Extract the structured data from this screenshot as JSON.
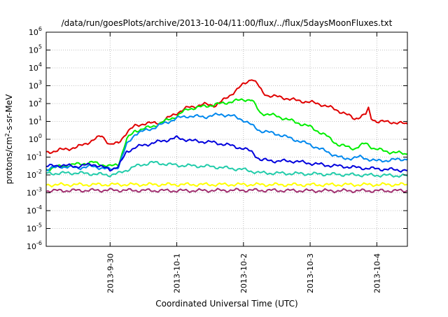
{
  "chart_data": {
    "type": "line",
    "title": "/data/run/goesPlots/archive/2013-10-04/11:00/flux/../flux/5daysMoonFluxes.txt",
    "xlabel": "Coordinated Universal Time (UTC)",
    "ylabel_parts": [
      "protons/cm",
      "2",
      "-s-sr-MeV"
    ],
    "x_is_date": true,
    "x_domain": [
      "2013-09-29 01:00",
      "2013-10-04 11:00"
    ],
    "x_ticks": [
      "2013-9-30",
      "2013-10-1",
      "2013-10-2",
      "2013-10-3",
      "2013-10-4"
    ],
    "y_scale": "log",
    "ylim": [
      1e-06,
      1000000.0
    ],
    "y_ticks": [
      {
        "base": "10",
        "exp": "-6"
      },
      {
        "base": "10",
        "exp": "-5"
      },
      {
        "base": "10",
        "exp": "-4"
      },
      {
        "base": "10",
        "exp": "-3"
      },
      {
        "base": "10",
        "exp": "-2"
      },
      {
        "base": "10",
        "exp": "-1"
      },
      {
        "base": "10",
        "exp": "0"
      },
      {
        "base": "10",
        "exp": "1"
      },
      {
        "base": "10",
        "exp": "2"
      },
      {
        "base": "10",
        "exp": "3"
      },
      {
        "base": "10",
        "exp": "4"
      },
      {
        "base": "10",
        "exp": "5"
      },
      {
        "base": "10",
        "exp": "6"
      }
    ],
    "grid": true,
    "series": [
      {
        "color": "#e00000",
        "points": [
          [
            "2013-09-29 01:00",
            0.18
          ],
          [
            "2013-09-29 06:00",
            0.25
          ],
          [
            "2013-09-29 12:00",
            0.35
          ],
          [
            "2013-09-29 18:00",
            0.9
          ],
          [
            "2013-09-29 21:00",
            1.6
          ],
          [
            "2013-09-30 00:00",
            0.5
          ],
          [
            "2013-09-30 03:00",
            0.6
          ],
          [
            "2013-09-30 06:00",
            2.5
          ],
          [
            "2013-09-30 09:00",
            5.5
          ],
          [
            "2013-09-30 12:00",
            7.5
          ],
          [
            "2013-09-30 18:00",
            8.5
          ],
          [
            "2013-10-01 00:00",
            30
          ],
          [
            "2013-10-01 04:00",
            60
          ],
          [
            "2013-10-01 10:00",
            90
          ],
          [
            "2013-10-01 14:00",
            80
          ],
          [
            "2013-10-01 17:00",
            160
          ],
          [
            "2013-10-01 21:00",
            500
          ],
          [
            "2013-10-02 00:00",
            1200
          ],
          [
            "2013-10-02 03:00",
            2600
          ],
          [
            "2013-10-02 05:00",
            1200
          ],
          [
            "2013-10-02 07:00",
            400
          ],
          [
            "2013-10-02 09:00",
            280
          ],
          [
            "2013-10-02 14:00",
            220
          ],
          [
            "2013-10-02 19:00",
            150
          ],
          [
            "2013-10-03 00:00",
            120
          ],
          [
            "2013-10-03 04:00",
            90
          ],
          [
            "2013-10-03 08:00",
            55
          ],
          [
            "2013-10-03 12:00",
            30
          ],
          [
            "2013-10-03 16:00",
            14
          ],
          [
            "2013-10-03 20:00",
            25
          ],
          [
            "2013-10-03 21:00",
            50
          ],
          [
            "2013-10-03 22:00",
            15
          ],
          [
            "2013-10-04 00:00",
            10
          ],
          [
            "2013-10-04 06:00",
            9
          ],
          [
            "2013-10-04 11:00",
            7
          ]
        ]
      },
      {
        "color": "#00ee00",
        "points": [
          [
            "2013-09-29 01:00",
            0.02
          ],
          [
            "2013-09-29 06:00",
            0.03
          ],
          [
            "2013-09-29 12:00",
            0.04
          ],
          [
            "2013-09-29 18:00",
            0.05
          ],
          [
            "2013-09-30 00:00",
            0.03
          ],
          [
            "2013-09-30 03:00",
            0.04
          ],
          [
            "2013-09-30 06:00",
            1.0
          ],
          [
            "2013-09-30 09:00",
            3.0
          ],
          [
            "2013-09-30 15:00",
            5
          ],
          [
            "2013-10-01 00:00",
            20
          ],
          [
            "2013-10-01 04:00",
            50
          ],
          [
            "2013-10-01 10:00",
            70
          ],
          [
            "2013-10-01 16:00",
            100
          ],
          [
            "2013-10-01 20:00",
            130
          ],
          [
            "2013-10-02 00:00",
            170
          ],
          [
            "2013-10-02 03:00",
            160
          ],
          [
            "2013-10-02 06:00",
            30
          ],
          [
            "2013-10-02 12:00",
            20
          ],
          [
            "2013-10-02 18:00",
            10
          ],
          [
            "2013-10-03 00:00",
            5
          ],
          [
            "2013-10-03 06:00",
            1.5
          ],
          [
            "2013-10-03 10:00",
            0.5
          ],
          [
            "2013-10-03 16:00",
            0.3
          ],
          [
            "2013-10-03 20:00",
            0.6
          ],
          [
            "2013-10-03 23:00",
            0.3
          ],
          [
            "2013-10-04 04:00",
            0.2
          ],
          [
            "2013-10-04 11:00",
            0.15
          ]
        ]
      },
      {
        "color": "#0088ee",
        "points": [
          [
            "2013-09-29 01:00",
            0.02
          ],
          [
            "2013-09-29 06:00",
            0.03
          ],
          [
            "2013-09-29 12:00",
            0.025
          ],
          [
            "2013-09-29 18:00",
            0.03
          ],
          [
            "2013-09-30 00:00",
            0.02
          ],
          [
            "2013-09-30 03:00",
            0.03
          ],
          [
            "2013-09-30 06:00",
            0.5
          ],
          [
            "2013-09-30 09:00",
            2
          ],
          [
            "2013-09-30 15:00",
            4
          ],
          [
            "2013-10-01 00:00",
            15
          ],
          [
            "2013-10-01 04:00",
            20
          ],
          [
            "2013-10-01 10:00",
            18
          ],
          [
            "2013-10-01 16:00",
            25
          ],
          [
            "2013-10-01 20:00",
            20
          ],
          [
            "2013-10-02 00:00",
            12
          ],
          [
            "2013-10-02 03:00",
            6
          ],
          [
            "2013-10-02 06:00",
            3
          ],
          [
            "2013-10-02 12:00",
            2
          ],
          [
            "2013-10-02 18:00",
            1
          ],
          [
            "2013-10-03 00:00",
            0.5
          ],
          [
            "2013-10-03 06:00",
            0.2
          ],
          [
            "2013-10-03 12:00",
            0.08
          ],
          [
            "2013-10-03 18:00",
            0.1
          ],
          [
            "2013-10-04 00:00",
            0.06
          ],
          [
            "2013-10-04 11:00",
            0.08
          ]
        ]
      },
      {
        "color": "#0000dd",
        "points": [
          [
            "2013-09-29 01:00",
            0.03
          ],
          [
            "2013-09-29 06:00",
            0.035
          ],
          [
            "2013-09-29 12:00",
            0.03
          ],
          [
            "2013-09-29 18:00",
            0.04
          ],
          [
            "2013-09-30 00:00",
            0.02
          ],
          [
            "2013-09-30 03:00",
            0.03
          ],
          [
            "2013-09-30 06:00",
            0.2
          ],
          [
            "2013-09-30 09:00",
            0.35
          ],
          [
            "2013-09-30 15:00",
            0.6
          ],
          [
            "2013-10-01 00:00",
            1.2
          ],
          [
            "2013-10-01 06:00",
            0.8
          ],
          [
            "2013-10-01 12:00",
            0.7
          ],
          [
            "2013-10-01 18:00",
            0.5
          ],
          [
            "2013-10-02 00:00",
            0.3
          ],
          [
            "2013-10-02 03:00",
            0.2
          ],
          [
            "2013-10-02 06:00",
            0.07
          ],
          [
            "2013-10-02 12:00",
            0.06
          ],
          [
            "2013-10-02 18:00",
            0.06
          ],
          [
            "2013-10-03 00:00",
            0.045
          ],
          [
            "2013-10-03 06:00",
            0.035
          ],
          [
            "2013-10-03 12:00",
            0.03
          ],
          [
            "2013-10-03 18:00",
            0.025
          ],
          [
            "2013-10-04 00:00",
            0.022
          ],
          [
            "2013-10-04 11:00",
            0.018
          ]
        ]
      },
      {
        "color": "#22ccaa",
        "points": [
          [
            "2013-09-29 01:00",
            0.012
          ],
          [
            "2013-09-29 12:00",
            0.013
          ],
          [
            "2013-09-30 00:00",
            0.01
          ],
          [
            "2013-09-30 03:00",
            0.012
          ],
          [
            "2013-09-30 09:00",
            0.03
          ],
          [
            "2013-09-30 15:00",
            0.05
          ],
          [
            "2013-10-01 00:00",
            0.035
          ],
          [
            "2013-10-01 12:00",
            0.03
          ],
          [
            "2013-10-02 00:00",
            0.02
          ],
          [
            "2013-10-02 06:00",
            0.013
          ],
          [
            "2013-10-02 18:00",
            0.012
          ],
          [
            "2013-10-03 06:00",
            0.011
          ],
          [
            "2013-10-03 18:00",
            0.01
          ],
          [
            "2013-10-04 11:00",
            0.009
          ]
        ]
      },
      {
        "color": "#ffff00",
        "points": [
          [
            "2013-09-29 01:00",
            0.0028
          ],
          [
            "2013-09-30 00:00",
            0.0029
          ],
          [
            "2013-10-01 00:00",
            0.0029
          ],
          [
            "2013-10-02 00:00",
            0.0029
          ],
          [
            "2013-10-03 00:00",
            0.0028
          ],
          [
            "2013-10-04 11:00",
            0.0029
          ]
        ]
      },
      {
        "color": "#a03070",
        "points": [
          [
            "2013-09-29 01:00",
            0.0013
          ],
          [
            "2013-09-30 00:00",
            0.0014
          ],
          [
            "2013-10-01 00:00",
            0.0013
          ],
          [
            "2013-10-02 00:00",
            0.0014
          ],
          [
            "2013-10-03 00:00",
            0.0013
          ],
          [
            "2013-10-04 11:00",
            0.0013
          ]
        ]
      }
    ]
  }
}
